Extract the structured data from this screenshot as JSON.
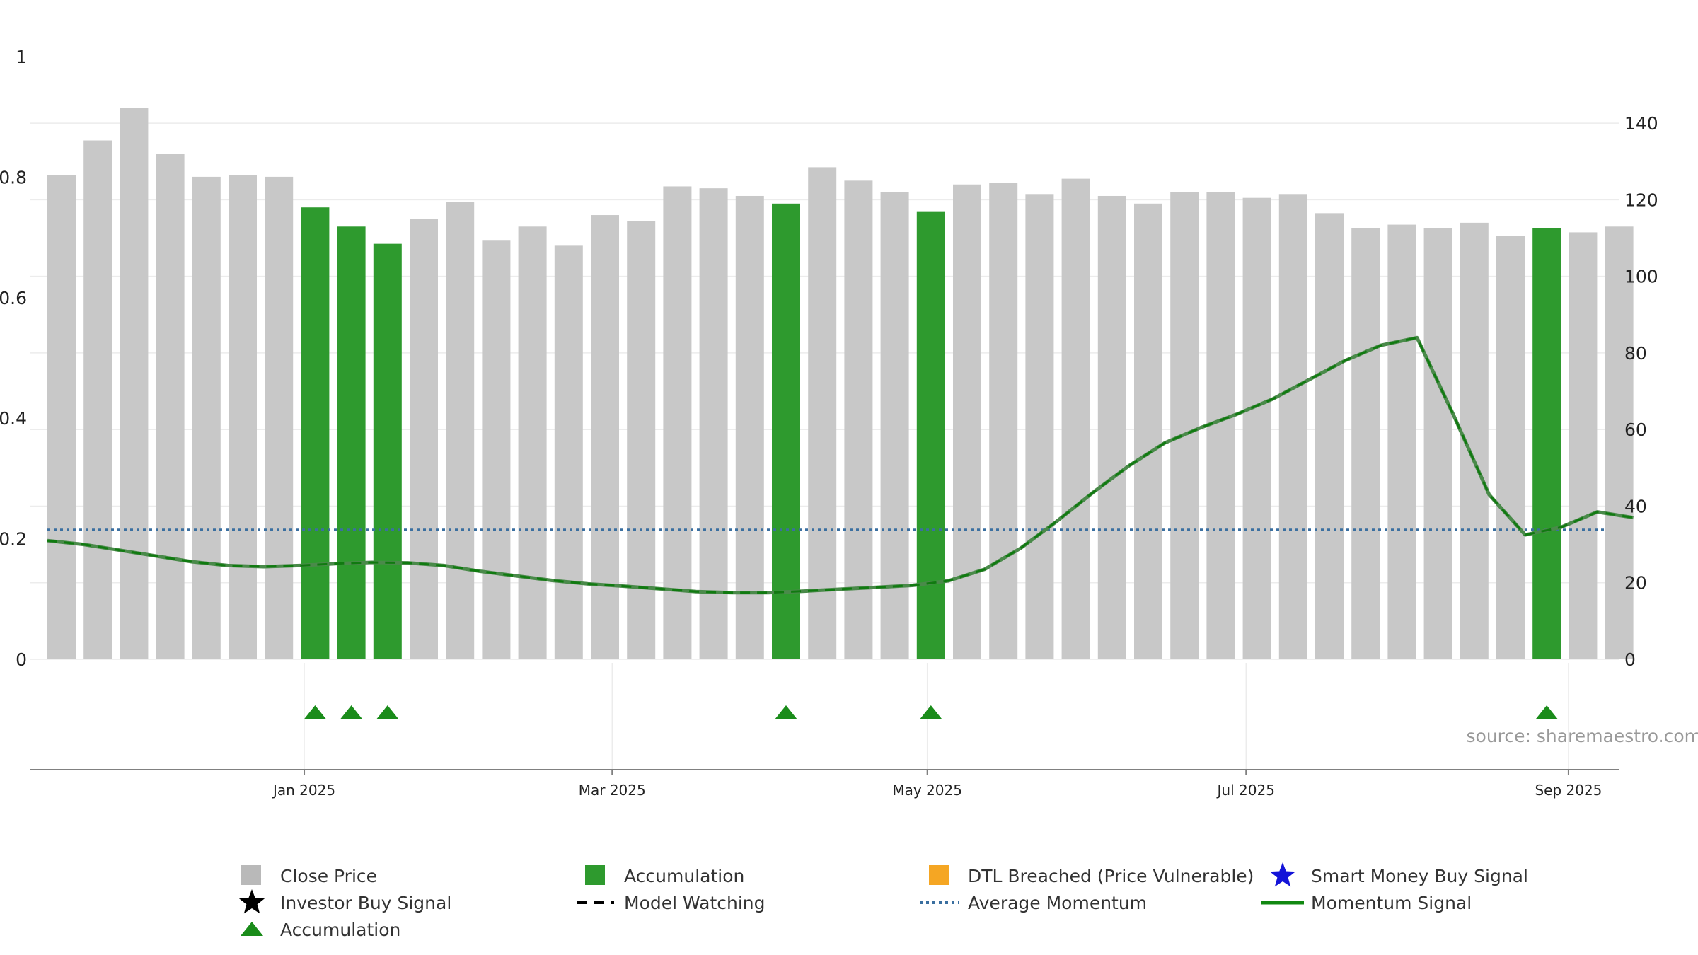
{
  "chart_data": {
    "type": "bar",
    "title": "",
    "xlabel": "",
    "ylabel_left": "",
    "ylabel_right": "",
    "left_axis": {
      "ylim": [
        0,
        1
      ],
      "ticks": [
        "0",
        "0.2",
        "0.4",
        "0.6",
        "0.8",
        "1"
      ]
    },
    "right_axis": {
      "ylim": [
        0,
        150
      ],
      "ticks": [
        "0",
        "20",
        "40",
        "60",
        "80",
        "100",
        "120",
        "140"
      ]
    },
    "x_ticks": [
      {
        "label": "Jan 2025",
        "bar_pos": 6.7
      },
      {
        "label": "Mar 2025",
        "bar_pos": 15.2
      },
      {
        "label": "May 2025",
        "bar_pos": 23.9
      },
      {
        "label": "Jul 2025",
        "bar_pos": 32.7
      },
      {
        "label": "Sep 2025",
        "bar_pos": 41.6
      }
    ],
    "close_price": [
      126.5,
      135.5,
      144,
      132,
      126,
      126.5,
      126,
      118,
      113,
      108.5,
      115,
      119.5,
      109.5,
      113,
      108,
      116,
      114.5,
      123.5,
      123,
      121,
      119,
      128.5,
      125,
      122,
      117,
      124,
      124.5,
      121.5,
      125.5,
      121,
      119,
      122,
      122,
      120.5,
      121.5,
      116.5,
      112.5,
      113.5,
      112.5,
      114,
      110.5,
      112.5,
      111.5,
      113
    ],
    "accumulation_bars": [
      7,
      8,
      9,
      20,
      24,
      41
    ],
    "accumulation_markers": [
      7,
      8,
      9,
      20,
      24,
      41
    ],
    "momentum_signal": [
      31,
      30,
      28.5,
      27,
      25.5,
      24.5,
      24.2,
      24.5,
      25,
      25.3,
      25.2,
      24.5,
      23,
      21.8,
      20.6,
      19.7,
      19.1,
      18.4,
      17.7,
      17.4,
      17.4,
      17.8,
      18.3,
      18.8,
      19.3,
      20.5,
      23.5,
      29,
      36,
      43.5,
      50.5,
      56.5,
      60.5,
      64,
      68,
      73,
      78,
      82,
      84,
      64,
      43,
      32.5,
      34.5,
      38.5,
      37
    ],
    "average_momentum": 33.8,
    "colors": {
      "close_price": "#c8c8c8",
      "accumulation": "#2e9a2e",
      "accumulation_marker": "#1a8c1a",
      "momentum": "#4a8a4a",
      "momentum_dashes": "#107a10",
      "average": "#3a6fa0",
      "grid": "#ececec",
      "axis": "#808080",
      "dtl": "#f5a623",
      "smart_money": "#1414d8",
      "investor": "#000000"
    },
    "legend": [
      {
        "label": "Close Price",
        "icon": "grey-square-icon"
      },
      {
        "label": "Accumulation",
        "icon": "green-square-icon"
      },
      {
        "label": "DTL Breached (Price Vulnerable)",
        "icon": "orange-square-icon"
      },
      {
        "label": "Smart Money Buy Signal",
        "icon": "blue-star-icon"
      },
      {
        "label": "Investor Buy Signal",
        "icon": "black-star-icon"
      },
      {
        "label": "Model Watching",
        "icon": "black-dash-line-icon"
      },
      {
        "label": "Average Momentum",
        "icon": "blue-dotted-line-icon"
      },
      {
        "label": "Momentum Signal",
        "icon": "green-line-icon"
      },
      {
        "label": "Accumulation",
        "icon": "green-triangle-icon"
      }
    ],
    "legend_placement": "bottom",
    "grid": true,
    "source": "source: sharemaestro.com"
  }
}
